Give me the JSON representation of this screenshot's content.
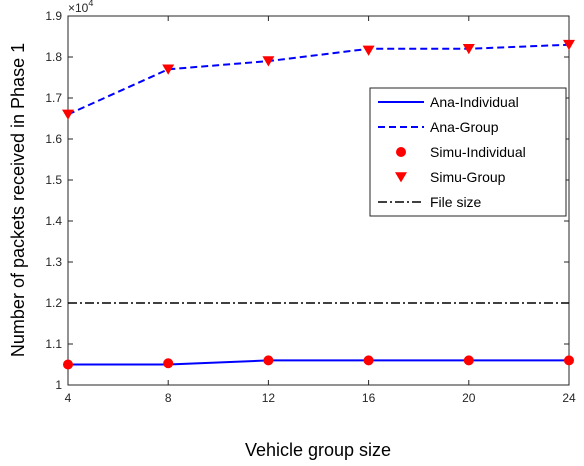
{
  "chart_data": {
    "type": "line",
    "xlabel": "Vehicle group size",
    "ylabel": "Number of packets received in Phase 1",
    "y_multiplier_base": "×10",
    "y_multiplier_exp": "4",
    "x_ticks": [
      "4",
      "8",
      "12",
      "16",
      "20",
      "24"
    ],
    "x_tick_values": [
      4,
      8,
      12,
      16,
      20,
      24
    ],
    "y_ticks": [
      "1",
      "1.1",
      "1.2",
      "1.3",
      "1.4",
      "1.5",
      "1.6",
      "1.7",
      "1.8",
      "1.9"
    ],
    "y_tick_values": [
      1.0,
      1.1,
      1.2,
      1.3,
      1.4,
      1.5,
      1.6,
      1.7,
      1.8,
      1.9
    ],
    "xlim": [
      4,
      24
    ],
    "ylim": [
      1.0,
      1.9
    ],
    "x": [
      4,
      8,
      12,
      16,
      20,
      24
    ],
    "series": [
      {
        "name": "Ana-Individual",
        "style": "solid-line",
        "color": "#0000ff",
        "values": [
          1.05,
          1.05,
          1.06,
          1.06,
          1.06,
          1.06
        ]
      },
      {
        "name": "Ana-Group",
        "style": "dashed-line",
        "color": "#0000ff",
        "values": [
          1.66,
          1.77,
          1.79,
          1.82,
          1.82,
          1.83
        ]
      },
      {
        "name": "Simu-Individual",
        "style": "circle-markers",
        "color": "#ff0000",
        "values": [
          1.05,
          1.053,
          1.06,
          1.06,
          1.06,
          1.06
        ]
      },
      {
        "name": "Simu-Group",
        "style": "triangle-markers",
        "color": "#ff0000",
        "values": [
          1.66,
          1.77,
          1.79,
          1.816,
          1.82,
          1.83
        ]
      },
      {
        "name": "File size",
        "style": "dashdot-line",
        "color": "#000000",
        "values": [
          1.2,
          1.2,
          1.2,
          1.2,
          1.2,
          1.2
        ]
      }
    ],
    "legend_position": "right",
    "grid": false
  }
}
